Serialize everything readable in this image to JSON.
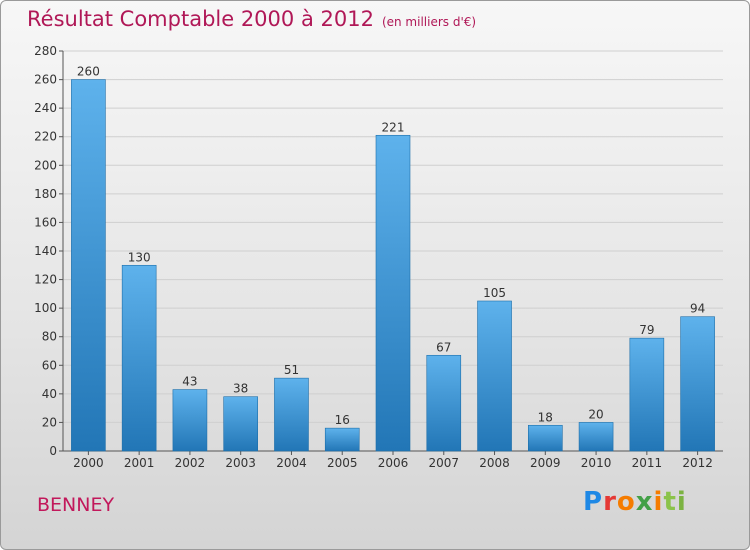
{
  "header": {
    "title": "Résultat Comptable 2000 à 2012",
    "subtitle": "(en milliers d'€)"
  },
  "footer": {
    "town": "BENNEY",
    "logo_text": "Proxiti"
  },
  "colors": {
    "title": "#b01857",
    "bar_top": "#5eb2ec",
    "bar_bottom": "#2276b6",
    "grid": "#cfcfcf"
  },
  "chart_data": {
    "type": "bar",
    "title": "Résultat Comptable 2000 à 2012",
    "xlabel": "",
    "ylabel": "",
    "categories": [
      "2000",
      "2001",
      "2002",
      "2003",
      "2004",
      "2005",
      "2006",
      "2007",
      "2008",
      "2009",
      "2010",
      "2011",
      "2012"
    ],
    "values": [
      260,
      130,
      43,
      38,
      51,
      16,
      221,
      67,
      105,
      18,
      20,
      79,
      94
    ],
    "ylim": [
      0,
      280
    ],
    "yticks": [
      0,
      20,
      40,
      60,
      80,
      100,
      120,
      140,
      160,
      180,
      200,
      220,
      240,
      260,
      280
    ],
    "grid": true,
    "data_labels": true
  }
}
